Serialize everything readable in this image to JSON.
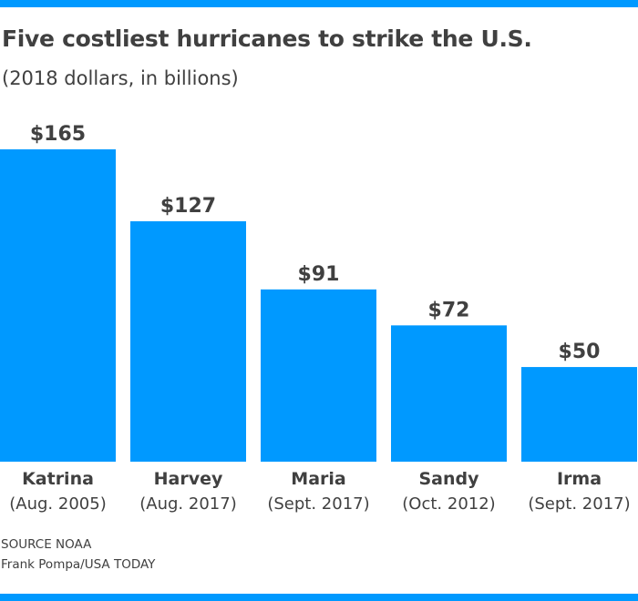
{
  "colors": {
    "bar": "#0099ff",
    "text": "#404040",
    "rule": "#0099ff"
  },
  "header": {
    "title": "Five costliest hurricanes to strike the U.S.",
    "subtitle": "(2018 dollars, in billions)"
  },
  "chart_data": {
    "type": "bar",
    "title": "Five costliest hurricanes to strike the U.S.",
    "subtitle": "(2018 dollars, in billions)",
    "categories": [
      "Katrina",
      "Harvey",
      "Maria",
      "Sandy",
      "Irma"
    ],
    "category_dates": [
      "(Aug. 2005)",
      "(Aug. 2017)",
      "(Sept. 2017)",
      "(Oct. 2012)",
      "(Sept. 2017)"
    ],
    "values": [
      165,
      127,
      91,
      72,
      50
    ],
    "data_labels": [
      "$165",
      "$127",
      "$91",
      "$72",
      "$50"
    ],
    "ylim": [
      0,
      165
    ],
    "grid": false,
    "legend": "none"
  },
  "footer": {
    "source": "SOURCE NOAA",
    "credit": "Frank Pompa/USA TODAY"
  }
}
